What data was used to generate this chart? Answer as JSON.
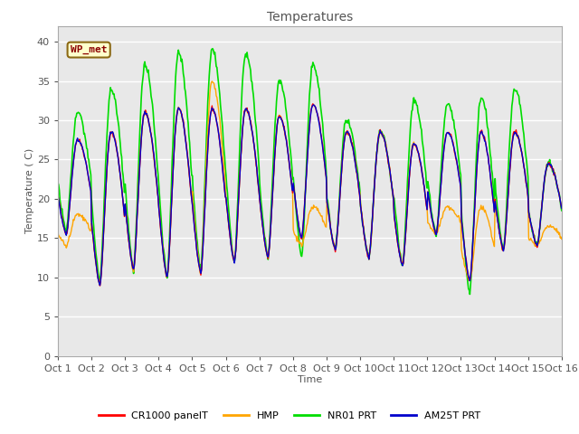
{
  "title": "Temperatures",
  "xlabel": "Time",
  "ylabel": "Temperature ( C)",
  "ylim": [
    0,
    42
  ],
  "yticks": [
    0,
    5,
    10,
    15,
    20,
    25,
    30,
    35,
    40
  ],
  "x_labels": [
    "Oct 1",
    "Oct 2",
    "Oct 3",
    "Oct 4",
    "Oct 5",
    "Oct 6",
    "Oct 7",
    "Oct 8",
    "Oct 9",
    "Oct 10",
    "Oct 11",
    "Oct 12",
    "Oct 13",
    "Oct 14",
    "Oct 15",
    "Oct 16"
  ],
  "annotation_text": "WP_met",
  "series": {
    "CR1000_panelT": {
      "color": "#ff0000",
      "label": "CR1000 panelT",
      "lw": 1.0
    },
    "HMP": {
      "color": "#ffa500",
      "label": "HMP",
      "lw": 1.0
    },
    "NR01_PRT": {
      "color": "#00dd00",
      "label": "NR01 PRT",
      "lw": 1.2
    },
    "AM25T_PRT": {
      "color": "#0000cc",
      "label": "AM25T PRT",
      "lw": 1.0
    }
  },
  "fig_bg": "#ffffff",
  "plot_bg": "#e8e8e8",
  "days": 15,
  "pts_per_day": 48,
  "day_maxima_core": [
    27.5,
    28.5,
    31.0,
    31.5,
    31.5,
    31.5,
    30.5,
    32.0,
    28.5,
    28.5,
    27.0,
    28.5,
    28.5,
    28.5,
    24.5
  ],
  "day_minima_core": [
    15.5,
    9.0,
    11.0,
    10.0,
    10.5,
    12.0,
    12.5,
    15.0,
    13.5,
    12.5,
    11.5,
    15.5,
    9.5,
    13.5,
    14.0
  ],
  "day_maxima_nr01": [
    31.0,
    34.0,
    37.0,
    38.5,
    39.0,
    38.5,
    35.0,
    37.0,
    30.0,
    28.5,
    32.5,
    32.0,
    33.0,
    34.0,
    24.5
  ],
  "day_minima_nr01": [
    16.0,
    9.5,
    11.0,
    10.0,
    11.0,
    12.0,
    12.5,
    12.5,
    13.5,
    12.5,
    11.5,
    15.5,
    8.0,
    13.5,
    14.0
  ],
  "day_maxima_hmp": [
    18.0,
    28.5,
    31.0,
    31.5,
    35.0,
    31.5,
    30.5,
    19.0,
    28.5,
    28.5,
    27.0,
    19.0,
    19.0,
    28.5,
    16.5
  ],
  "day_minima_hmp": [
    14.0,
    9.0,
    11.0,
    10.0,
    10.5,
    12.0,
    12.5,
    14.0,
    13.5,
    12.5,
    11.5,
    15.5,
    9.5,
    13.5,
    14.0
  ]
}
